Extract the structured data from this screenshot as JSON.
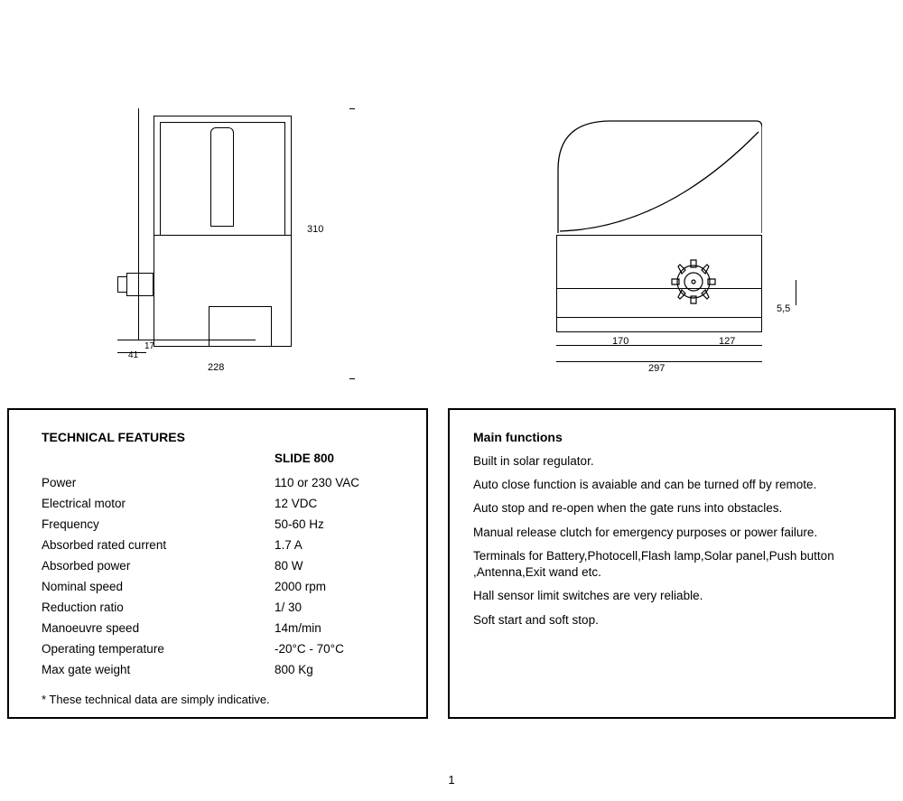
{
  "page_number": "1",
  "diagrams": {
    "left": {
      "dim_height": "310",
      "dim_width": "228",
      "dim_offset_small": "17",
      "dim_offset_large": "41"
    },
    "right": {
      "dim_total_width": "297",
      "dim_left_seg": "170",
      "dim_right_seg": "127",
      "dim_small_v": "5,5"
    },
    "line_color": "#000000",
    "background": "#ffffff",
    "dim_fontsize": 11
  },
  "tech": {
    "title": "TECHNICAL FEATURES",
    "model": "SLIDE 800",
    "rows": [
      {
        "k": "Power",
        "v": "110 or 230 VAC"
      },
      {
        "k": "Electrical motor",
        "v": "12 VDC"
      },
      {
        "k": "Frequency",
        "v": "50-60 Hz"
      },
      {
        "k": "Absorbed rated current",
        "v": "1.7 A"
      },
      {
        "k": "Absorbed power",
        "v": "80 W"
      },
      {
        "k": "Nominal speed",
        "v": "2000 rpm"
      },
      {
        "k": "Reduction ratio",
        "v": "1/ 30"
      },
      {
        "k": "Manoeuvre speed",
        "v": "14m/min"
      },
      {
        "k": "Operating temperature",
        "v": "-20°C - 70°C"
      },
      {
        "k": "Max gate weight",
        "v": "800 Kg"
      }
    ],
    "footnote": "* These technical data are simply indicative."
  },
  "functions": {
    "title": "Main functions",
    "lines": [
      "Built in solar regulator.",
      "Auto close function is avaiable and can be turned off by remote.",
      "Auto stop and re-open when the gate runs into obstacles.",
      "Manual release clutch for emergency purposes or power failure.",
      "Terminals for Battery,Photocell,Flash lamp,Solar panel,Push button ,Antenna,Exit wand etc.",
      "Hall sensor limit switches are very reliable.",
      "Soft start and soft stop."
    ]
  }
}
